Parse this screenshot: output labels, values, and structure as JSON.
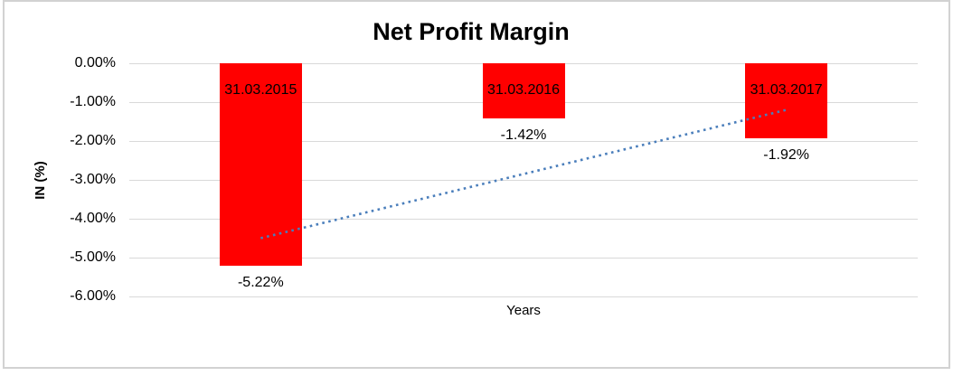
{
  "chart_data": {
    "type": "bar",
    "title": "Net Profit Margin",
    "xlabel": "Years",
    "ylabel": "IN (%)",
    "categories": [
      "31.03.2015",
      "31.03.2016",
      "31.03.2017"
    ],
    "values": [
      -5.22,
      -1.42,
      -1.92
    ],
    "data_labels": [
      "-5.22%",
      "-1.42%",
      "-1.92%"
    ],
    "y_ticks": [
      "0.00%",
      "-1.00%",
      "-2.00%",
      "-3.00%",
      "-4.00%",
      "-5.00%",
      "-6.00%"
    ],
    "ylim": [
      -6,
      0
    ],
    "y_tick_step": 1,
    "grid": true,
    "legend": "none",
    "bar_color": "#ff0000",
    "gridline_color": "#d9d9d9",
    "text_color": "#000000",
    "border_color": "#d2d2d2",
    "trendline": {
      "type": "linear",
      "style": "dotted",
      "color": "#4a7ebb",
      "start_value": -4.5,
      "end_value": -1.2
    }
  }
}
